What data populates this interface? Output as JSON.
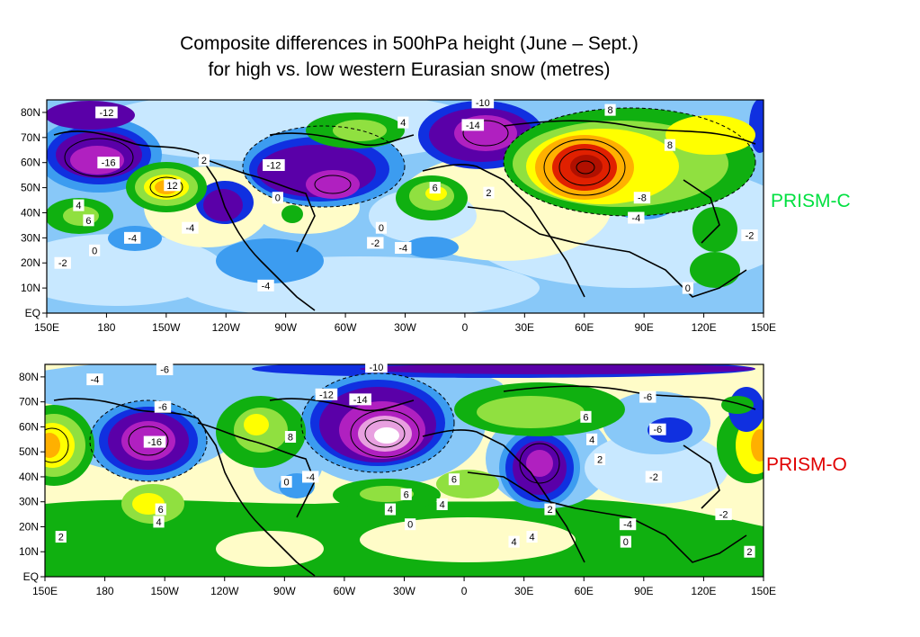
{
  "title": {
    "line1": "Composite differences in 500hPa height (June – Sept.)",
    "line2": "for high vs. low western Eurasian snow (metres)"
  },
  "colors": {
    "deep_purple": "#5a00a8",
    "magenta": "#b020c0",
    "pink": "#e8a0e0",
    "dark_blue": "#1030e0",
    "mid_blue": "#3c9cf0",
    "light_blue": "#88c8f8",
    "pale_blue": "#c8e8ff",
    "pale_yellow": "#fffcc8",
    "green": "#10b010",
    "light_green": "#90e040",
    "yellow": "#ffff00",
    "orange": "#ffb000",
    "red": "#e02000",
    "prism_c": "#00e040",
    "prism_o": "#e00000"
  },
  "lat_ticks": [
    "80N",
    "70N",
    "60N",
    "50N",
    "40N",
    "30N",
    "20N",
    "10N",
    "EQ"
  ],
  "lon_ticks": [
    "150E",
    "180",
    "150W",
    "120W",
    "90W",
    "60W",
    "30W",
    "0",
    "30E",
    "60E",
    "90E",
    "120E",
    "150E"
  ],
  "panels": [
    {
      "name": "PRISM-C",
      "label_color": "#00e040",
      "contour_labels": [
        {
          "text": "-12",
          "lon": 180,
          "lat": 80
        },
        {
          "text": "-16",
          "lon": 181,
          "lat": 60
        },
        {
          "text": "4",
          "lon": 166,
          "lat": 43
        },
        {
          "text": "6",
          "lon": 171,
          "lat": 37
        },
        {
          "text": "0",
          "lon": 174,
          "lat": 25
        },
        {
          "text": "-2",
          "lon": 158,
          "lat": 20
        },
        {
          "text": "-4",
          "lon": 193,
          "lat": 30
        },
        {
          "text": "12",
          "lon": 213,
          "lat": 51
        },
        {
          "text": "2",
          "lon": 229,
          "lat": 61
        },
        {
          "text": "-4",
          "lon": 222,
          "lat": 34
        },
        {
          "text": "-4",
          "lon": 260,
          "lat": 11
        },
        {
          "text": "4",
          "lon": 329,
          "lat": 76
        },
        {
          "text": "-12",
          "lon": 264,
          "lat": 59
        },
        {
          "text": "0",
          "lon": 266,
          "lat": 46
        },
        {
          "text": "-2",
          "lon": 315,
          "lat": 28
        },
        {
          "text": "0",
          "lon": 318,
          "lat": 34
        },
        {
          "text": "-4",
          "lon": 329,
          "lat": 26
        },
        {
          "text": "6",
          "lon": 345,
          "lat": 50
        },
        {
          "text": "2",
          "lon": 372,
          "lat": 48
        },
        {
          "text": "-10",
          "lon": 369,
          "lat": 84
        },
        {
          "text": "-14",
          "lon": 364,
          "lat": 75
        },
        {
          "text": "8",
          "lon": 433,
          "lat": 81
        },
        {
          "text": "8",
          "lon": 463,
          "lat": 67
        },
        {
          "text": "-8",
          "lon": 449,
          "lat": 46
        },
        {
          "text": "-4",
          "lon": 446,
          "lat": 38
        },
        {
          "text": "-2",
          "lon": 503,
          "lat": 31
        },
        {
          "text": "0",
          "lon": 472,
          "lat": 10
        }
      ]
    },
    {
      "name": "PRISM-O",
      "label_color": "#e00000",
      "contour_labels": [
        {
          "text": "-6",
          "lon": 210,
          "lat": 83
        },
        {
          "text": "-4",
          "lon": 175,
          "lat": 79
        },
        {
          "text": "-6",
          "lon": 209,
          "lat": 68
        },
        {
          "text": "-16",
          "lon": 205,
          "lat": 54
        },
        {
          "text": "6",
          "lon": 208,
          "lat": 27
        },
        {
          "text": "4",
          "lon": 207,
          "lat": 22
        },
        {
          "text": "2",
          "lon": 158,
          "lat": 16
        },
        {
          "text": "0",
          "lon": 271,
          "lat": 38
        },
        {
          "text": "-4",
          "lon": 283,
          "lat": 40
        },
        {
          "text": "8",
          "lon": 273,
          "lat": 56
        },
        {
          "text": "-12",
          "lon": 291,
          "lat": 73
        },
        {
          "text": "-14",
          "lon": 308,
          "lat": 71
        },
        {
          "text": "-10",
          "lon": 316,
          "lat": 84
        },
        {
          "text": "6",
          "lon": 331,
          "lat": 33
        },
        {
          "text": "4",
          "lon": 323,
          "lat": 27
        },
        {
          "text": "0",
          "lon": 333,
          "lat": 21
        },
        {
          "text": "4",
          "lon": 349,
          "lat": 29
        },
        {
          "text": "6",
          "lon": 355,
          "lat": 39
        },
        {
          "text": "6",
          "lon": 421,
          "lat": 64
        },
        {
          "text": "4",
          "lon": 424,
          "lat": 55
        },
        {
          "text": "2",
          "lon": 428,
          "lat": 47
        },
        {
          "text": "-6",
          "lon": 452,
          "lat": 72
        },
        {
          "text": "-6",
          "lon": 457,
          "lat": 59
        },
        {
          "text": "-2",
          "lon": 455,
          "lat": 40
        },
        {
          "text": "2",
          "lon": 403,
          "lat": 27
        },
        {
          "text": "4",
          "lon": 394,
          "lat": 16
        },
        {
          "text": "4",
          "lon": 385,
          "lat": 14
        },
        {
          "text": "-4",
          "lon": 442,
          "lat": 21
        },
        {
          "text": "0",
          "lon": 441,
          "lat": 14
        },
        {
          "text": "-2",
          "lon": 490,
          "lat": 25
        },
        {
          "text": "2",
          "lon": 503,
          "lat": 10
        }
      ]
    }
  ]
}
